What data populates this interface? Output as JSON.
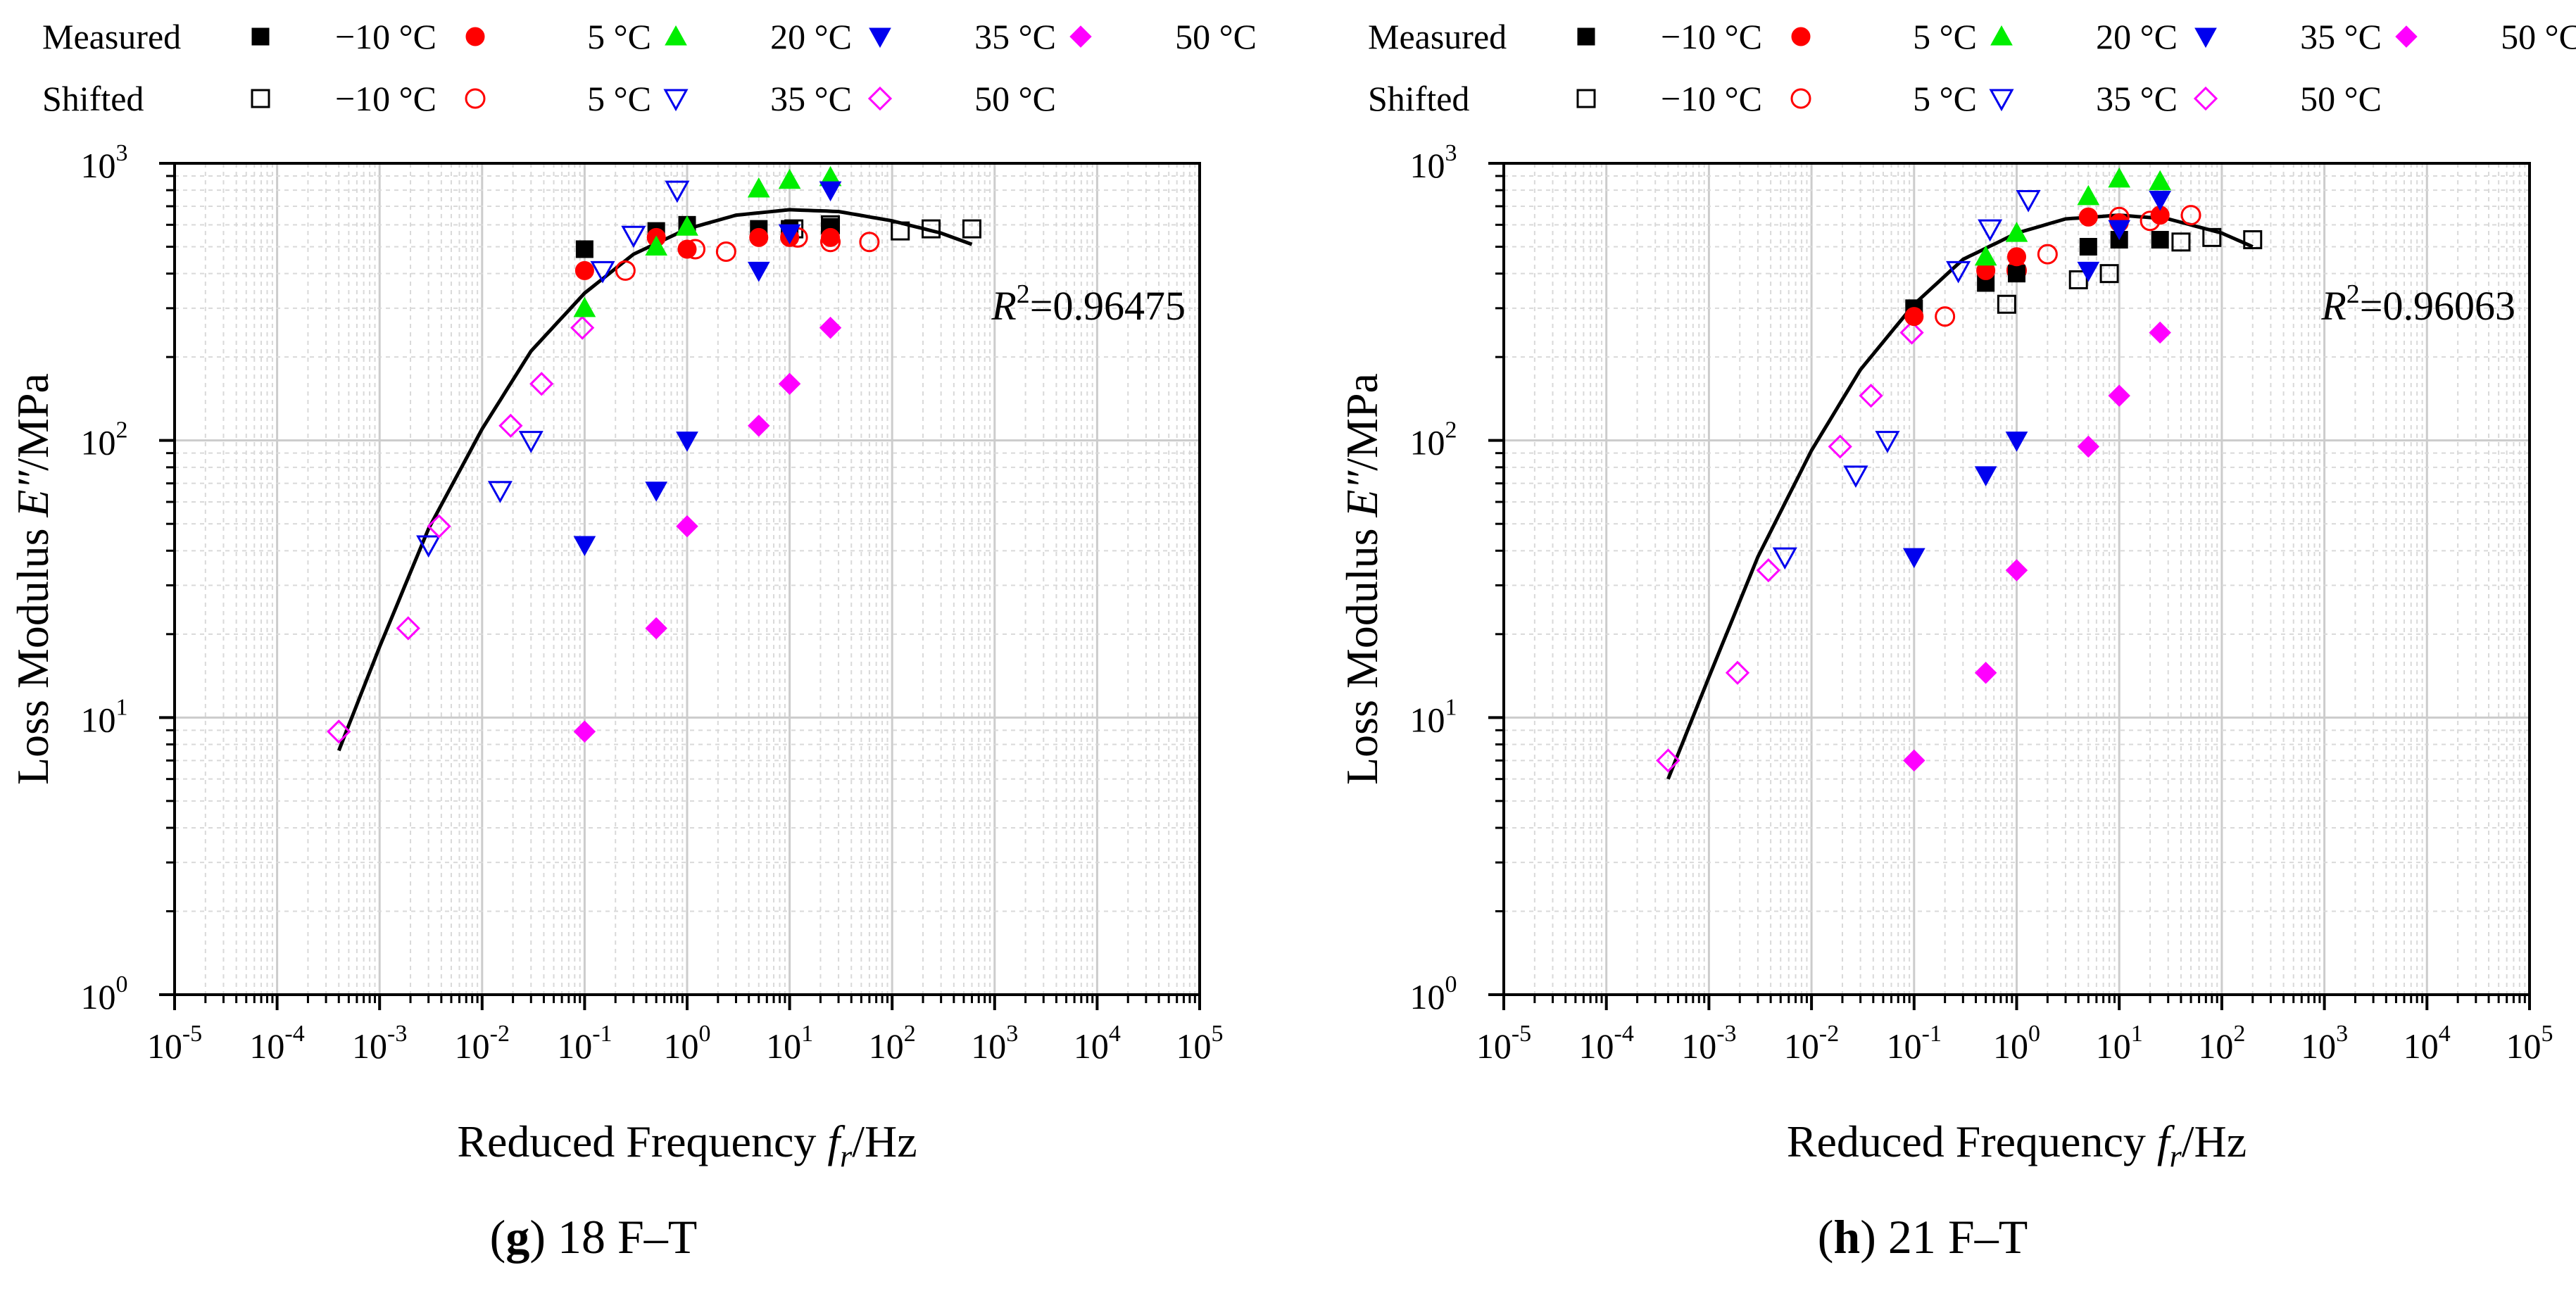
{
  "legend": {
    "row_measured": "Measured",
    "row_shifted": "Shifted",
    "series": [
      {
        "key": "m10",
        "label": "−10 °C",
        "color": "#000000"
      },
      {
        "key": "p5",
        "label": "5 °C",
        "color": "#ff0000"
      },
      {
        "key": "p20",
        "label": "20 °C",
        "color": "#00ee00"
      },
      {
        "key": "p35",
        "label": "35 °C",
        "color": "#0000ee"
      },
      {
        "key": "p50",
        "label": "50 °C",
        "color": "#ff00ff"
      }
    ]
  },
  "chart_data": [
    {
      "type": "scatter",
      "caption_letter": "g",
      "caption_text": "18 F–T",
      "title": "",
      "xlabel_prefix": "Reduced Frequency ",
      "xlabel_f": "f",
      "xlabel_sub": "r",
      "xlabel_suffix": "/Hz",
      "ylabel_prefix": "Loss Modulus ",
      "ylabel_e": "E″",
      "ylabel_suffix": "/MPa",
      "x_scale": "log",
      "y_scale": "log",
      "xlim_exp": [
        -5,
        5
      ],
      "ylim_exp": [
        0,
        3
      ],
      "grid": true,
      "r2_label": "R",
      "r2_sup": "2",
      "r2_value": "=0.96475",
      "fit_curve": {
        "x": [
          0.0004,
          0.001,
          0.003,
          0.01,
          0.03,
          0.1,
          0.3,
          1,
          3,
          10,
          30,
          100,
          300,
          600
        ],
        "y": [
          7.6,
          18,
          48,
          110,
          210,
          340,
          470,
          580,
          650,
          680,
          670,
          620,
          560,
          510
        ]
      },
      "measured": [
        {
          "temp": "-10 °C",
          "color": "#000000",
          "x": [
            0.1,
            0.5,
            1,
            5,
            10,
            25
          ],
          "y": [
            490,
            570,
            600,
            580,
            580,
            590
          ]
        },
        {
          "temp": "5 °C",
          "color": "#ff0000",
          "x": [
            0.1,
            0.5,
            1,
            5,
            10,
            25
          ],
          "y": [
            410,
            540,
            490,
            540,
            540,
            540
          ]
        },
        {
          "temp": "20 °C",
          "color": "#00ee00",
          "x": [
            0.1,
            0.5,
            1,
            5,
            10,
            25
          ],
          "y": [
            300,
            500,
            590,
            810,
            870,
            890
          ]
        },
        {
          "temp": "35 °C",
          "color": "#0000ee",
          "x": [
            0.1,
            0.5,
            1,
            5,
            10,
            25
          ],
          "y": [
            42,
            66,
            100,
            410,
            560,
            800
          ]
        },
        {
          "temp": "50 °C",
          "color": "#ff00ff",
          "x": [
            0.1,
            0.5,
            1,
            5,
            10,
            25
          ],
          "y": [
            8.9,
            21,
            49,
            113,
            160,
            255
          ]
        }
      ],
      "shifted": [
        {
          "temp": "-10 °C",
          "color": "#000000",
          "x": [
            11,
            25,
            120,
            240,
            600
          ],
          "y": [
            580,
            600,
            570,
            580,
            580
          ]
        },
        {
          "temp": "5 °C",
          "color": "#ff0000",
          "x": [
            0.25,
            1.2,
            2.4,
            12,
            25,
            60
          ],
          "y": [
            410,
            490,
            480,
            540,
            520,
            520
          ]
        },
        {
          "temp": "35 °C",
          "color": "#0000ee",
          "x": [
            0.003,
            0.015,
            0.03,
            0.15,
            0.3,
            0.8
          ],
          "y": [
            42,
            66,
            100,
            410,
            550,
            800
          ]
        },
        {
          "temp": "50 °C",
          "color": "#ff00ff",
          "x": [
            0.0004,
            0.0019,
            0.0038,
            0.019,
            0.038,
            0.095
          ],
          "y": [
            8.9,
            21,
            49,
            113,
            160,
            255
          ]
        }
      ]
    },
    {
      "type": "scatter",
      "caption_letter": "h",
      "caption_text": "21 F–T",
      "title": "",
      "xlabel_prefix": "Reduced Frequency ",
      "xlabel_f": "f",
      "xlabel_sub": "r",
      "xlabel_suffix": "/Hz",
      "ylabel_prefix": "Loss Modulus ",
      "ylabel_e": "E″",
      "ylabel_suffix": "/MPa",
      "x_scale": "log",
      "y_scale": "log",
      "xlim_exp": [
        -5,
        5
      ],
      "ylim_exp": [
        0,
        3
      ],
      "grid": true,
      "r2_label": "R",
      "r2_sup": "2",
      "r2_value": "=0.96063",
      "fit_curve": {
        "x": [
          0.0004,
          0.001,
          0.003,
          0.01,
          0.03,
          0.1,
          0.3,
          1,
          3,
          10,
          30,
          100,
          200
        ],
        "y": [
          6,
          14,
          38,
          92,
          180,
          310,
          450,
          560,
          630,
          650,
          630,
          560,
          500
        ]
      },
      "measured": [
        {
          "temp": "-10 °C",
          "color": "#000000",
          "x": [
            0.1,
            0.5,
            1,
            5,
            10,
            25
          ],
          "y": [
            300,
            370,
            400,
            500,
            530,
            530
          ]
        },
        {
          "temp": "5 °C",
          "color": "#ff0000",
          "x": [
            0.1,
            0.5,
            1,
            5,
            10,
            25
          ],
          "y": [
            280,
            410,
            460,
            640,
            610,
            650
          ]
        },
        {
          "temp": "20 °C",
          "color": "#00ee00",
          "x": [
            0.5,
            1,
            5,
            10,
            25
          ],
          "y": [
            460,
            560,
            760,
            880,
            860
          ]
        },
        {
          "temp": "35 °C",
          "color": "#0000ee",
          "x": [
            0.1,
            0.5,
            1,
            5,
            10,
            25
          ],
          "y": [
            38,
            75,
            100,
            410,
            580,
            740
          ]
        },
        {
          "temp": "50 °C",
          "color": "#ff00ff",
          "x": [
            0.1,
            0.5,
            1,
            5,
            10,
            25
          ],
          "y": [
            7,
            14.5,
            34,
            95,
            145,
            245
          ]
        }
      ],
      "shifted": [
        {
          "temp": "-10 °C",
          "color": "#000000",
          "x": [
            0.8,
            4,
            8,
            40,
            80,
            200
          ],
          "y": [
            310,
            380,
            400,
            520,
            540,
            530
          ]
        },
        {
          "temp": "5 °C",
          "color": "#ff0000",
          "x": [
            0.2,
            1,
            2,
            10,
            20,
            50
          ],
          "y": [
            280,
            410,
            470,
            640,
            620,
            650
          ]
        },
        {
          "temp": "35 °C",
          "color": "#0000ee",
          "x": [
            0.0055,
            0.027,
            0.055,
            0.27,
            0.55,
            1.3
          ],
          "y": [
            38,
            75,
            100,
            410,
            580,
            740
          ]
        },
        {
          "temp": "50 °C",
          "color": "#ff00ff",
          "x": [
            0.0004,
            0.0019,
            0.0038,
            0.019,
            0.038,
            0.095
          ],
          "y": [
            7,
            14.5,
            34,
            95,
            145,
            245
          ]
        }
      ]
    }
  ]
}
